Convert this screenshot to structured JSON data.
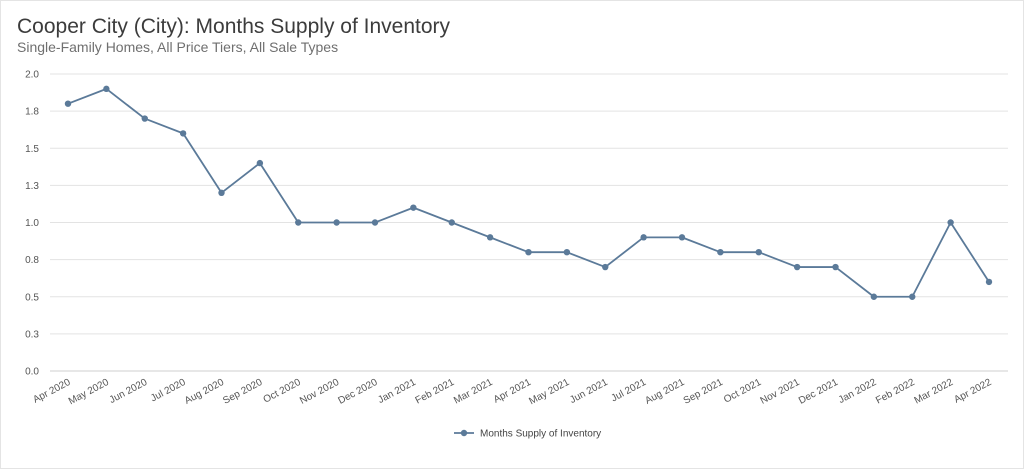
{
  "chart_data": {
    "type": "line",
    "title": "Cooper City (City): Months Supply of Inventory",
    "subtitle": "Single-Family Homes, All Price Tiers, All Sale Types",
    "categories": [
      "Apr 2020",
      "May 2020",
      "Jun 2020",
      "Jul 2020",
      "Aug 2020",
      "Sep 2020",
      "Oct 2020",
      "Nov 2020",
      "Dec 2020",
      "Jan 2021",
      "Feb 2021",
      "Mar 2021",
      "Apr 2021",
      "May 2021",
      "Jun 2021",
      "Jul 2021",
      "Aug 2021",
      "Sep 2021",
      "Oct 2021",
      "Nov 2021",
      "Dec 2021",
      "Jan 2022",
      "Feb 2022",
      "Mar 2022",
      "Apr 2022"
    ],
    "series": [
      {
        "name": "Months Supply of Inventory",
        "color": "#5b7a99",
        "values": [
          1.8,
          1.9,
          1.7,
          1.6,
          1.2,
          1.4,
          1.0,
          1.0,
          1.0,
          1.1,
          1.0,
          0.9,
          0.8,
          0.8,
          0.7,
          0.9,
          0.9,
          0.8,
          0.8,
          0.7,
          0.7,
          0.5,
          0.5,
          1.0,
          0.6
        ]
      }
    ],
    "yticks": [
      "0.0",
      "0.3",
      "0.5",
      "0.8",
      "1.0",
      "1.3",
      "1.5",
      "1.8",
      "2.0"
    ],
    "ylim": [
      0,
      2.0
    ],
    "grid": true,
    "legend": "bottom-center"
  }
}
